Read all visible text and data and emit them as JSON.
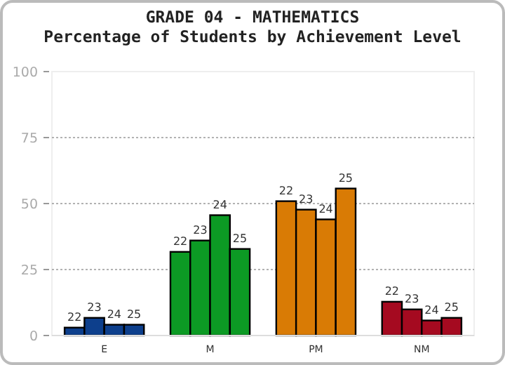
{
  "chart_data": {
    "type": "bar",
    "title": "GRADE 04 - MATHEMATICS",
    "subtitle": "Percentage of Students by Achievement Level",
    "categories": [
      "E",
      "M",
      "PM",
      "NM"
    ],
    "series": [
      {
        "name": "22",
        "colors": [
          "#0d3f8c",
          "#0c9a24",
          "#d97b05",
          "#a50a20"
        ],
        "values": [
          3,
          31.7,
          50.9,
          12.8
        ]
      },
      {
        "name": "23",
        "colors": [
          "#0d3f8c",
          "#0c9a24",
          "#d97b05",
          "#a50a20"
        ],
        "values": [
          6.7,
          36,
          47.7,
          9.9
        ]
      },
      {
        "name": "24",
        "colors": [
          "#0d3f8c",
          "#0c9a24",
          "#d97b05",
          "#a50a20"
        ],
        "values": [
          4.1,
          45.6,
          44,
          5.7
        ]
      },
      {
        "name": "25",
        "colors": [
          "#0d3f8c",
          "#0c9a24",
          "#d97b05",
          "#a50a20"
        ],
        "values": [
          4.1,
          32.8,
          55.7,
          6.7
        ]
      }
    ],
    "ylim": [
      0,
      100
    ],
    "yticks": [
      0,
      25,
      50,
      75,
      100
    ],
    "grid": "y"
  }
}
